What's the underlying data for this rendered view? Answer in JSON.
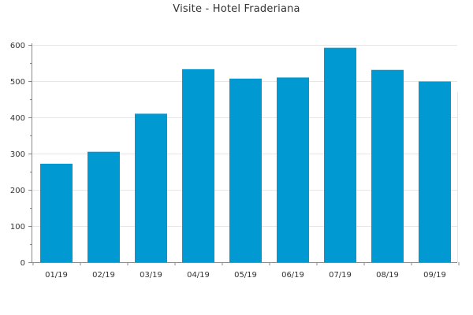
{
  "chart_data": {
    "type": "bar",
    "title": "Visite - Hotel Fraderiana",
    "xlabel": "",
    "ylabel": "",
    "categories": [
      "01/19",
      "02/19",
      "03/19",
      "04/19",
      "05/19",
      "06/19",
      "07/19",
      "08/19",
      "09/19"
    ],
    "values": [
      272,
      305,
      410,
      533,
      507,
      510,
      592,
      531,
      499
    ],
    "ylim": [
      0,
      600
    ],
    "yticks": [
      0,
      100,
      200,
      300,
      400,
      500,
      600
    ],
    "grid": true,
    "legend": "none",
    "colors": {
      "bar": "#0099d2",
      "grid": "#e6e6e6",
      "axis": "#888888",
      "text": "#333333"
    }
  }
}
